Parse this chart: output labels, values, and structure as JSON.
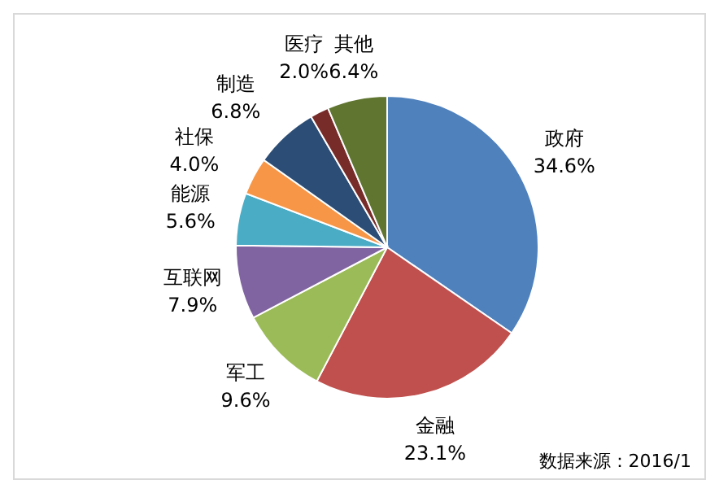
{
  "chart_data": {
    "type": "pie",
    "categories": [
      "政府",
      "金融",
      "军工",
      "互联网",
      "能源",
      "社保",
      "制造",
      "医疗",
      "其他"
    ],
    "values": [
      34.6,
      23.1,
      9.6,
      7.9,
      5.6,
      4.0,
      6.8,
      2.0,
      6.4
    ],
    "value_labels": [
      "34.6%",
      "23.1%",
      "9.6%",
      "7.9%",
      "5.6%",
      "4.0%",
      "6.8%",
      "2.0%",
      "6.4%"
    ],
    "colors": [
      "#4f81bd",
      "#c0504d",
      "#9bbb59",
      "#8064a2",
      "#4bacc6",
      "#f79646",
      "#2c4d75",
      "#772c2a",
      "#5f7530"
    ],
    "annotations": [
      "数据来源：2016/1"
    ]
  }
}
